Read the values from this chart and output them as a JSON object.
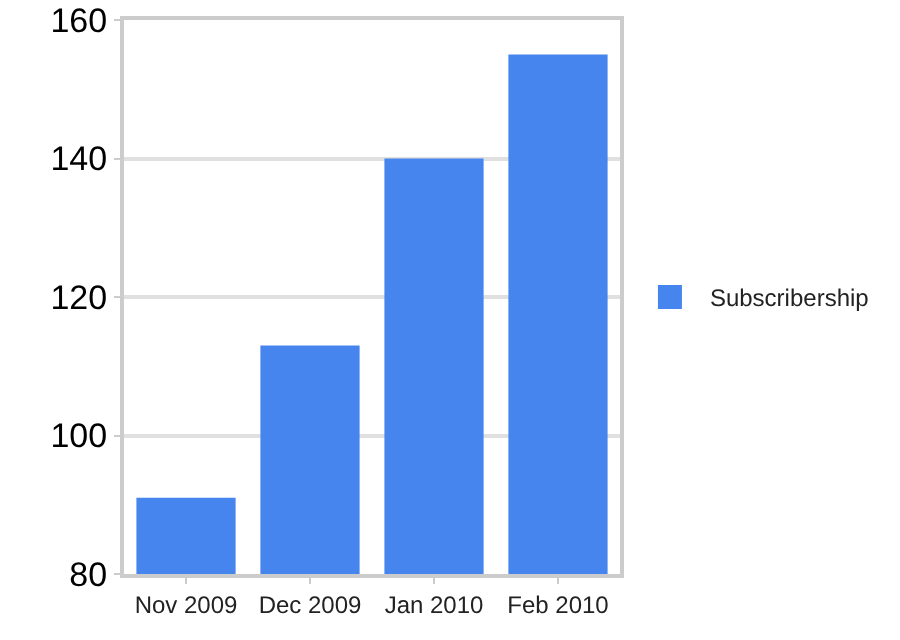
{
  "chart_data": {
    "type": "bar",
    "categories": [
      "Nov 2009",
      "Dec 2009",
      "Jan 2010",
      "Feb 2010"
    ],
    "series": [
      {
        "name": "Subscribership",
        "color": "#4684ee",
        "values": [
          91,
          113,
          140,
          155
        ]
      }
    ],
    "ylim": [
      80,
      160
    ],
    "yticks": [
      80,
      100,
      120,
      140,
      160
    ],
    "grid": "y",
    "legend": "right"
  }
}
